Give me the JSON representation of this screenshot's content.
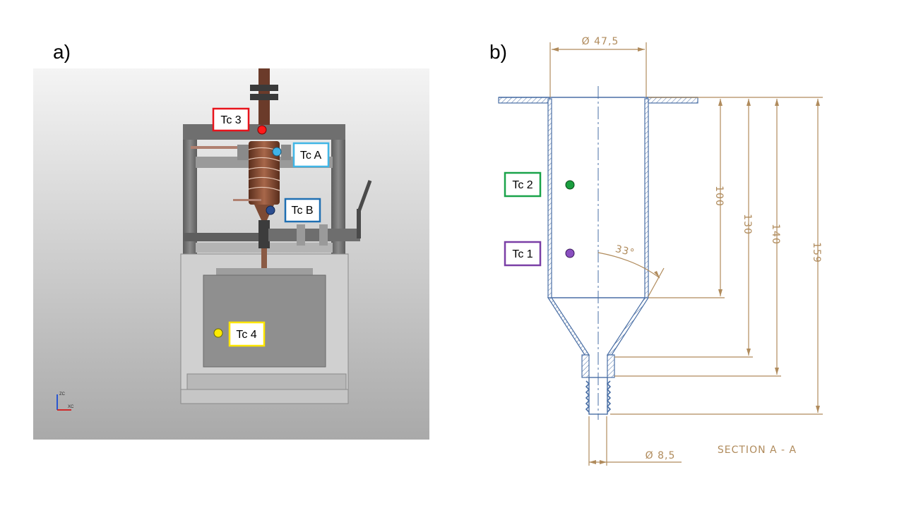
{
  "panels": {
    "a": {
      "letter": "a)"
    },
    "b": {
      "letter": "b)"
    }
  },
  "thermocouples": {
    "tc3": {
      "label": "Tc 3",
      "color": "#e8141c",
      "dot": "#ff1a1a"
    },
    "tcA": {
      "label": "Tc A",
      "color": "#41b6e6",
      "dot": "#3fb3e8"
    },
    "tcB": {
      "label": "Tc B",
      "color": "#1f6fb2",
      "dot": "#2b4d8f"
    },
    "tc4": {
      "label": "Tc 4",
      "color": "#ffe600",
      "dot": "#ffea00"
    },
    "tc2": {
      "label": "Tc 2",
      "color": "#1aa34a",
      "dot": "#1a9e3f"
    },
    "tc1": {
      "label": "Tc 1",
      "color": "#7a3fa6",
      "dot": "#8a4fc0"
    }
  },
  "drawing": {
    "dia_top": "Ø 47,5",
    "dia_bottom": "Ø 8,5",
    "dim_100": "100",
    "dim_130": "130",
    "dim_140": "140",
    "dim_159": "159",
    "angle": "33°",
    "section": "SECTION A - A"
  },
  "axes_triad": {
    "zc": "ZC",
    "xc": "XC"
  }
}
